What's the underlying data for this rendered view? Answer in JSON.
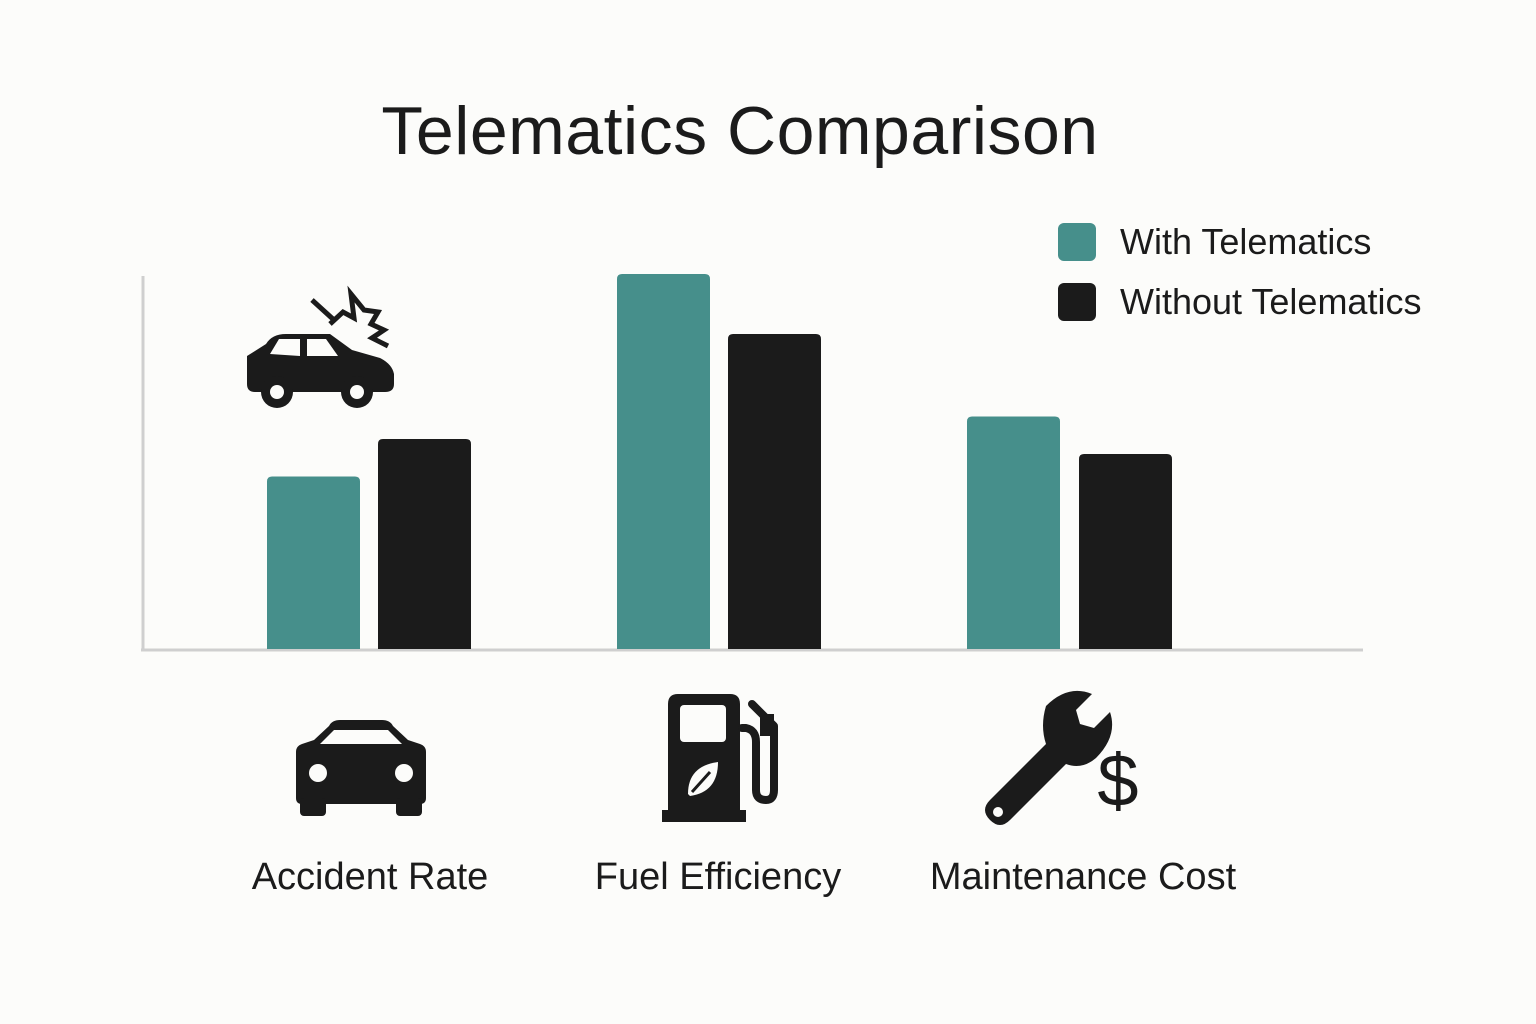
{
  "chart_data": {
    "type": "bar",
    "title": "Telematics Comparison",
    "categories": [
      "Accident Rate",
      "Fuel Efficiency",
      "Maintenance Cost"
    ],
    "series": [
      {
        "name": "With Telematics",
        "color": "#468f8b",
        "values": [
          46,
          100,
          62
        ]
      },
      {
        "name": "Without Telematics",
        "color": "#1b1b1b",
        "values": [
          56,
          84,
          52
        ]
      }
    ],
    "xlabel": "",
    "ylabel": "",
    "ylim": [
      0,
      100
    ],
    "grid": false,
    "legend": "top-right",
    "icons": [
      "car-crash-icon",
      "car-icon",
      "fuel-pump-leaf-icon",
      "wrench-dollar-icon"
    ]
  }
}
